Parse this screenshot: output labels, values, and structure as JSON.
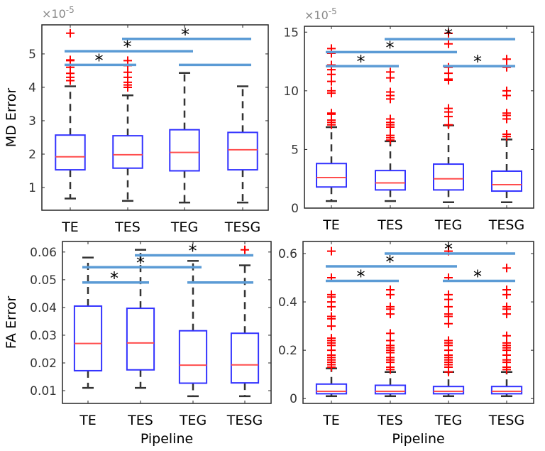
{
  "chart_data": [
    {
      "type": "box",
      "ylabel": "MD Error",
      "xlabel": "",
      "exponent_label": "×10",
      "exponent_power": "-5",
      "ylim": [
        0.32,
        5.87
      ],
      "yticks": [
        1,
        2,
        3,
        4,
        5
      ],
      "ytick_labels": [
        "1",
        "2",
        "3",
        "4",
        "5"
      ],
      "categories": [
        "TE",
        "TES",
        "TEG",
        "TESG"
      ],
      "boxes": [
        {
          "whisker_low": 0.67,
          "q1": 1.53,
          "median": 1.92,
          "q3": 2.57,
          "whisker_high": 4.03,
          "outliers": [
            4.2,
            4.3,
            4.42,
            4.6,
            4.8,
            4.82,
            5.62
          ]
        },
        {
          "whisker_low": 0.6,
          "q1": 1.58,
          "median": 1.98,
          "q3": 2.55,
          "whisker_high": 3.76,
          "outliers": [
            4.0,
            4.07,
            4.15,
            4.3,
            4.45,
            4.65,
            4.8
          ]
        },
        {
          "whisker_low": 0.55,
          "q1": 1.5,
          "median": 2.05,
          "q3": 2.73,
          "whisker_high": 4.43,
          "outliers": []
        },
        {
          "whisker_low": 0.55,
          "q1": 1.53,
          "median": 2.13,
          "q3": 2.65,
          "whisker_high": 4.03,
          "outliers": []
        }
      ],
      "significance": [
        {
          "from": "TE",
          "to": "TES",
          "y": 4.67,
          "label": "*"
        },
        {
          "from": "TE",
          "to": "TEG",
          "y": 5.08,
          "label": "*"
        },
        {
          "from": "TES",
          "to": "TESG",
          "y": 5.45,
          "label": "*"
        },
        {
          "from": "TEG",
          "to": "TESG",
          "y": 4.67,
          "label": ""
        }
      ]
    },
    {
      "type": "box",
      "ylabel": "",
      "xlabel": "",
      "exponent_label": "×10",
      "exponent_power": "-5",
      "ylim": [
        0,
        15.5
      ],
      "yticks": [
        0,
        5,
        10,
        15
      ],
      "ytick_labels": [
        "0",
        "5",
        "10",
        "15"
      ],
      "categories": [
        "TE",
        "TES",
        "TEG",
        "TESG"
      ],
      "boxes": [
        {
          "whisker_low": 0.6,
          "q1": 1.8,
          "median": 2.6,
          "q3": 3.8,
          "whisker_high": 6.9,
          "outliers": [
            7.1,
            7.3,
            7.5,
            8.0,
            8.1,
            9.8,
            10.0,
            10.8,
            11.4,
            11.8,
            12.2,
            13.2,
            13.6
          ]
        },
        {
          "whisker_low": 0.6,
          "q1": 1.55,
          "median": 2.15,
          "q3": 3.2,
          "whisker_high": 5.7,
          "outliers": [
            5.8,
            6.0,
            6.2,
            6.9,
            7.1,
            7.3,
            7.6,
            9.3,
            9.6,
            9.9,
            11.1,
            11.6
          ]
        },
        {
          "whisker_low": 0.5,
          "q1": 1.55,
          "median": 2.5,
          "q3": 3.75,
          "whisker_high": 7.05,
          "outliers": [
            7.1,
            7.8,
            8.2,
            8.5,
            10.9,
            11.0,
            11.5,
            12.0,
            14.0,
            14.9
          ]
        },
        {
          "whisker_low": 0.5,
          "q1": 1.45,
          "median": 2.0,
          "q3": 3.15,
          "whisker_high": 5.85,
          "outliers": [
            6.1,
            6.3,
            7.6,
            7.9,
            8.1,
            9.6,
            10.0,
            12.0,
            12.7
          ]
        }
      ],
      "significance": [
        {
          "from": "TE",
          "to": "TES",
          "y": 12.1,
          "label": "*"
        },
        {
          "from": "TE",
          "to": "TEG",
          "y": 13.3,
          "label": "*"
        },
        {
          "from": "TES",
          "to": "TESG",
          "y": 14.4,
          "label": "*"
        },
        {
          "from": "TEG",
          "to": "TESG",
          "y": 12.1,
          "label": "*"
        }
      ]
    },
    {
      "type": "box",
      "ylabel": "FA Error",
      "xlabel": "Pipeline",
      "ylim": [
        0.0054,
        0.0638
      ],
      "yticks": [
        0.01,
        0.02,
        0.03,
        0.04,
        0.05,
        0.06
      ],
      "ytick_labels": [
        "0.01",
        "0.02",
        "0.03",
        "0.04",
        "0.05",
        "0.06"
      ],
      "categories": [
        "TE",
        "TES",
        "TEG",
        "TESG"
      ],
      "boxes": [
        {
          "whisker_low": 0.011,
          "q1": 0.0172,
          "median": 0.027,
          "q3": 0.0405,
          "whisker_high": 0.058,
          "outliers": []
        },
        {
          "whisker_low": 0.011,
          "q1": 0.0175,
          "median": 0.0272,
          "q3": 0.0397,
          "whisker_high": 0.0608,
          "outliers": []
        },
        {
          "whisker_low": 0.008,
          "q1": 0.0127,
          "median": 0.0192,
          "q3": 0.0316,
          "whisker_high": 0.0568,
          "outliers": []
        },
        {
          "whisker_low": 0.008,
          "q1": 0.0128,
          "median": 0.0193,
          "q3": 0.0307,
          "whisker_high": 0.0552,
          "outliers": [
            0.0608
          ]
        }
      ],
      "significance": [
        {
          "from": "TE",
          "to": "TES",
          "y": 0.049,
          "label": "*"
        },
        {
          "from": "TE",
          "to": "TEG",
          "y": 0.0545,
          "label": "*"
        },
        {
          "from": "TES",
          "to": "TESG",
          "y": 0.0588,
          "label": "*"
        },
        {
          "from": "TEG",
          "to": "TESG",
          "y": 0.049,
          "label": ""
        }
      ]
    },
    {
      "type": "box",
      "ylabel": "",
      "xlabel": "Pipeline",
      "ylim": [
        -0.02,
        0.65
      ],
      "yticks": [
        0,
        0.2,
        0.4,
        0.6
      ],
      "ytick_labels": [
        "0",
        "0.2",
        "0.4",
        "0.6"
      ],
      "categories": [
        "TE",
        "TES",
        "TEG",
        "TESG"
      ],
      "boxes": [
        {
          "whisker_low": 0.01,
          "q1": 0.02,
          "median": 0.03,
          "q3": 0.06,
          "whisker_high": 0.125,
          "outliers": [
            0.13,
            0.14,
            0.15,
            0.16,
            0.17,
            0.18,
            0.2,
            0.22,
            0.23,
            0.24,
            0.25,
            0.3,
            0.33,
            0.34,
            0.38,
            0.4,
            0.42,
            0.43,
            0.5,
            0.61
          ]
        },
        {
          "whisker_low": 0.01,
          "q1": 0.02,
          "median": 0.03,
          "q3": 0.055,
          "whisker_high": 0.11,
          "outliers": [
            0.12,
            0.13,
            0.15,
            0.16,
            0.17,
            0.19,
            0.2,
            0.21,
            0.22,
            0.24,
            0.27,
            0.35,
            0.37,
            0.38,
            0.43,
            0.45
          ]
        },
        {
          "whisker_low": 0.01,
          "q1": 0.02,
          "median": 0.03,
          "q3": 0.05,
          "whisker_high": 0.11,
          "outliers": [
            0.11,
            0.13,
            0.14,
            0.15,
            0.16,
            0.17,
            0.18,
            0.2,
            0.22,
            0.23,
            0.24,
            0.31,
            0.34,
            0.35,
            0.38,
            0.41,
            0.43,
            0.5,
            0.61
          ]
        },
        {
          "whisker_low": 0.01,
          "q1": 0.02,
          "median": 0.03,
          "q3": 0.05,
          "whisker_high": 0.11,
          "outliers": [
            0.12,
            0.13,
            0.15,
            0.16,
            0.18,
            0.2,
            0.21,
            0.22,
            0.23,
            0.26,
            0.35,
            0.37,
            0.38,
            0.43,
            0.45,
            0.54
          ]
        }
      ],
      "significance": [
        {
          "from": "TE",
          "to": "TES",
          "y": 0.487,
          "label": "*"
        },
        {
          "from": "TE",
          "to": "TEG",
          "y": 0.547,
          "label": "*"
        },
        {
          "from": "TES",
          "to": "TESG",
          "y": 0.6,
          "label": "*"
        },
        {
          "from": "TEG",
          "to": "TESG",
          "y": 0.487,
          "label": "*"
        }
      ]
    }
  ],
  "colors": {
    "box": "#3333ff",
    "median": "#ff4d4d",
    "outlier": "#ff0000",
    "whisker": "#333333",
    "significance_line": "#5b9bd5",
    "axis": "#262626"
  }
}
